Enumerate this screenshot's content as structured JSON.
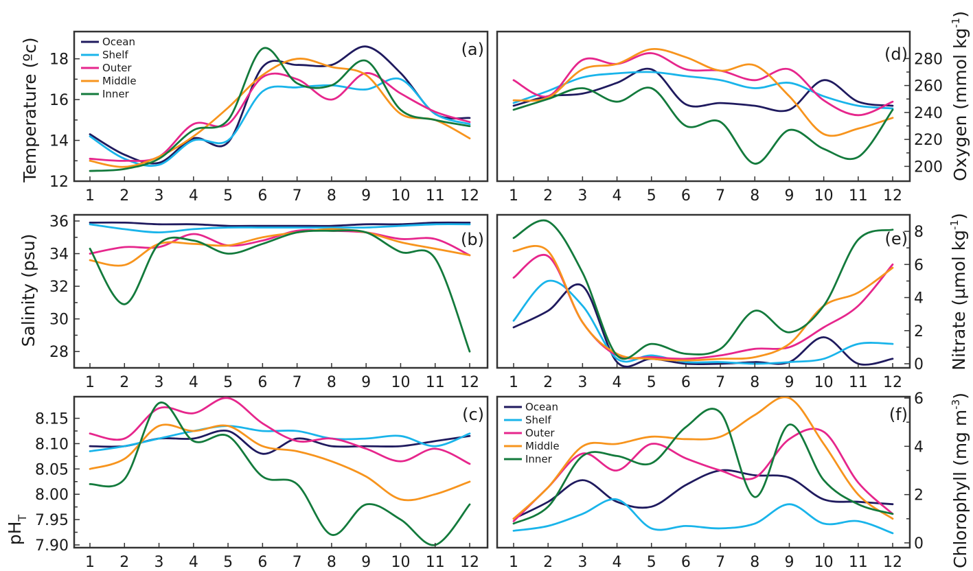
{
  "colors": {
    "Ocean": "#1f1a5e",
    "Shelf": "#19b4ea",
    "Outer": "#e6268c",
    "Middle": "#f7941d",
    "Inner": "#137a3c"
  },
  "chart_data": [
    {
      "type": "line",
      "panel": "(a)",
      "xlabel": "",
      "ylabel": "Temperature (ºc)",
      "x": [
        1,
        2,
        3,
        4,
        5,
        6,
        7,
        8,
        9,
        10,
        11,
        12
      ],
      "ylim": [
        12,
        19.2
      ],
      "yticks": [
        12,
        14,
        16,
        18
      ],
      "yaxis_side": "left",
      "legend": {
        "placement": "top-left",
        "entries": [
          "Ocean",
          "Shelf",
          "Outer",
          "Middle",
          "Inner"
        ]
      },
      "series": [
        {
          "name": "Ocean",
          "values": [
            14.3,
            13.3,
            12.9,
            14.1,
            13.9,
            17.6,
            17.7,
            17.7,
            18.6,
            17.3,
            15.3,
            15.1
          ]
        },
        {
          "name": "Shelf",
          "values": [
            14.2,
            13.1,
            12.8,
            14.0,
            14.0,
            16.4,
            16.6,
            16.7,
            16.5,
            17.0,
            15.3,
            14.8
          ]
        },
        {
          "name": "Outer",
          "values": [
            13.1,
            13.0,
            13.2,
            14.8,
            14.8,
            17.1,
            17.0,
            16.0,
            17.3,
            16.3,
            15.4,
            14.9
          ]
        },
        {
          "name": "Middle",
          "values": [
            13.0,
            12.7,
            13.2,
            14.2,
            15.6,
            17.2,
            18.0,
            17.6,
            17.2,
            15.3,
            15.0,
            14.1
          ]
        },
        {
          "name": "Inner",
          "values": [
            12.5,
            12.6,
            13.1,
            14.5,
            15.0,
            18.5,
            16.8,
            16.7,
            17.9,
            15.5,
            15.0,
            14.7
          ]
        }
      ]
    },
    {
      "type": "line",
      "panel": "(b)",
      "xlabel": "",
      "ylabel": "Salinity (psu)",
      "x": [
        1,
        2,
        3,
        4,
        5,
        6,
        7,
        8,
        9,
        10,
        11,
        12
      ],
      "ylim": [
        27,
        36
      ],
      "yticks": [
        28,
        30,
        32,
        34,
        36
      ],
      "yaxis_side": "left",
      "series": [
        {
          "name": "Ocean",
          "values": [
            35.9,
            35.9,
            35.8,
            35.8,
            35.7,
            35.7,
            35.7,
            35.7,
            35.8,
            35.8,
            35.9,
            35.9
          ]
        },
        {
          "name": "Shelf",
          "values": [
            35.8,
            35.5,
            35.3,
            35.5,
            35.6,
            35.6,
            35.6,
            35.6,
            35.6,
            35.7,
            35.8,
            35.8
          ]
        },
        {
          "name": "Outer",
          "values": [
            34.0,
            34.4,
            34.4,
            35.2,
            34.5,
            34.8,
            35.4,
            35.4,
            35.3,
            34.9,
            34.9,
            33.9
          ]
        },
        {
          "name": "Middle",
          "values": [
            33.6,
            33.3,
            34.6,
            34.6,
            34.5,
            35.0,
            35.3,
            35.5,
            35.3,
            34.7,
            34.3,
            33.9
          ]
        },
        {
          "name": "Inner",
          "values": [
            34.3,
            30.9,
            34.6,
            34.8,
            34.0,
            34.6,
            35.3,
            35.4,
            35.3,
            34.1,
            33.7,
            28.0
          ]
        }
      ]
    },
    {
      "type": "line",
      "panel": "(c)",
      "xlabel": "",
      "ylabel": "pH",
      "ylabel_subscript": "T",
      "x": [
        1,
        2,
        3,
        4,
        5,
        6,
        7,
        8,
        9,
        10,
        11,
        12
      ],
      "ylim": [
        7.9,
        8.19
      ],
      "yticks": [
        7.9,
        7.95,
        8.0,
        8.05,
        8.1,
        8.15
      ],
      "ytick_labels": [
        "7.90",
        "7.95",
        "8.00",
        "8.05",
        "8.10",
        "8.15"
      ],
      "yaxis_side": "left",
      "series": [
        {
          "name": "Ocean",
          "values": [
            8.095,
            8.095,
            8.11,
            8.11,
            8.125,
            8.08,
            8.11,
            8.095,
            8.095,
            8.095,
            8.105,
            8.115
          ]
        },
        {
          "name": "Shelf",
          "values": [
            8.085,
            8.095,
            8.11,
            8.125,
            8.135,
            8.125,
            8.125,
            8.11,
            8.11,
            8.115,
            8.095,
            8.12
          ]
        },
        {
          "name": "Outer",
          "values": [
            8.12,
            8.11,
            8.17,
            8.16,
            8.19,
            8.14,
            8.105,
            8.11,
            8.09,
            8.065,
            8.09,
            8.06
          ]
        },
        {
          "name": "Middle",
          "values": [
            8.05,
            8.07,
            8.135,
            8.125,
            8.135,
            8.095,
            8.085,
            8.065,
            8.035,
            7.99,
            8.0,
            8.025
          ]
        },
        {
          "name": "Inner",
          "values": [
            8.02,
            8.03,
            8.18,
            8.105,
            8.115,
            8.035,
            8.02,
            7.92,
            7.98,
            7.95,
            7.9,
            7.98
          ]
        }
      ]
    },
    {
      "type": "line",
      "panel": "(d)",
      "xlabel": "",
      "ylabel": "Oxygen (mmol kg",
      "ylabel_superscript": "-1",
      "ylabel_suffix": ")",
      "x": [
        1,
        2,
        3,
        4,
        5,
        6,
        7,
        8,
        9,
        10,
        11,
        12
      ],
      "ylim": [
        189,
        298
      ],
      "yticks": [
        200,
        220,
        240,
        260,
        280
      ],
      "yaxis_side": "right",
      "series": [
        {
          "name": "Ocean",
          "values": [
            245,
            252,
            254,
            262,
            272,
            246,
            247,
            245,
            242,
            264,
            248,
            245
          ]
        },
        {
          "name": "Shelf",
          "values": [
            247,
            256,
            266,
            269,
            270,
            267,
            264,
            258,
            262,
            252,
            245,
            243
          ]
        },
        {
          "name": "Outer",
          "values": [
            264,
            252,
            279,
            276,
            284,
            272,
            271,
            264,
            272,
            249,
            238,
            248
          ]
        },
        {
          "name": "Middle",
          "values": [
            249,
            251,
            272,
            276,
            287,
            281,
            271,
            275,
            252,
            224,
            228,
            236
          ]
        },
        {
          "name": "Inner",
          "values": [
            242,
            250,
            258,
            248,
            258,
            230,
            233,
            202,
            227,
            213,
            207,
            242
          ]
        }
      ]
    },
    {
      "type": "line",
      "panel": "(e)",
      "xlabel": "",
      "ylabel": "Nitrate (µmol kg",
      "ylabel_superscript": "-1",
      "ylabel_suffix": ")",
      "x": [
        1,
        2,
        3,
        4,
        5,
        6,
        7,
        8,
        9,
        10,
        11,
        12
      ],
      "ylim": [
        0,
        9
      ],
      "yticks": [
        0,
        2,
        4,
        6,
        8
      ],
      "yaxis_side": "right",
      "series": [
        {
          "name": "Ocean",
          "values": [
            2.2,
            3.2,
            4.7,
            0.1,
            0.3,
            0.0,
            0.0,
            0.1,
            0.1,
            1.6,
            0.0,
            0.3
          ]
        },
        {
          "name": "Shelf",
          "values": [
            2.6,
            5.0,
            3.5,
            0.3,
            0.5,
            0.1,
            0.1,
            0.0,
            0.1,
            0.3,
            1.2,
            1.2
          ]
        },
        {
          "name": "Outer",
          "values": [
            5.2,
            6.5,
            2.5,
            0.5,
            0.4,
            0.3,
            0.5,
            0.9,
            1.0,
            2.2,
            3.5,
            6.0
          ]
        },
        {
          "name": "Middle",
          "values": [
            6.8,
            6.8,
            2.5,
            0.6,
            0.3,
            0.2,
            0.3,
            0.4,
            1.2,
            3.5,
            4.3,
            5.8
          ]
        },
        {
          "name": "Inner",
          "values": [
            7.6,
            8.6,
            5.5,
            0.5,
            1.2,
            0.6,
            0.9,
            3.2,
            1.9,
            3.5,
            7.5,
            8.1
          ]
        }
      ]
    },
    {
      "type": "line",
      "panel": "(f)",
      "xlabel": "",
      "ylabel": "Chlorophyll (mg m",
      "ylabel_superscript": "-3",
      "ylabel_suffix": ")",
      "x": [
        1,
        2,
        3,
        4,
        5,
        6,
        7,
        8,
        9,
        10,
        11,
        12
      ],
      "ylim": [
        0,
        6
      ],
      "yticks": [
        0,
        2,
        4,
        6
      ],
      "yaxis_side": "right",
      "legend": {
        "placement": "top-left",
        "entries": [
          "Ocean",
          "Shelf",
          "Outer",
          "Middle",
          "Inner"
        ]
      },
      "series": [
        {
          "name": "Ocean",
          "values": [
            1.0,
            1.7,
            2.6,
            1.7,
            1.5,
            2.4,
            3.0,
            2.8,
            2.7,
            1.8,
            1.7,
            1.6
          ]
        },
        {
          "name": "Shelf",
          "values": [
            0.5,
            0.7,
            1.2,
            1.8,
            0.6,
            0.7,
            0.6,
            0.8,
            1.6,
            0.8,
            0.9,
            0.4
          ]
        },
        {
          "name": "Outer",
          "values": [
            0.9,
            2.3,
            3.7,
            3.0,
            4.1,
            3.5,
            3.0,
            2.7,
            4.3,
            4.6,
            2.5,
            1.2
          ]
        },
        {
          "name": "Middle",
          "values": [
            1.0,
            2.3,
            4.0,
            4.1,
            4.4,
            4.3,
            4.4,
            5.3,
            6.0,
            4.1,
            2.0,
            1.0
          ]
        },
        {
          "name": "Inner",
          "values": [
            0.8,
            1.5,
            3.6,
            3.6,
            3.3,
            4.8,
            5.4,
            1.9,
            4.9,
            2.6,
            1.6,
            1.2
          ]
        }
      ]
    }
  ]
}
